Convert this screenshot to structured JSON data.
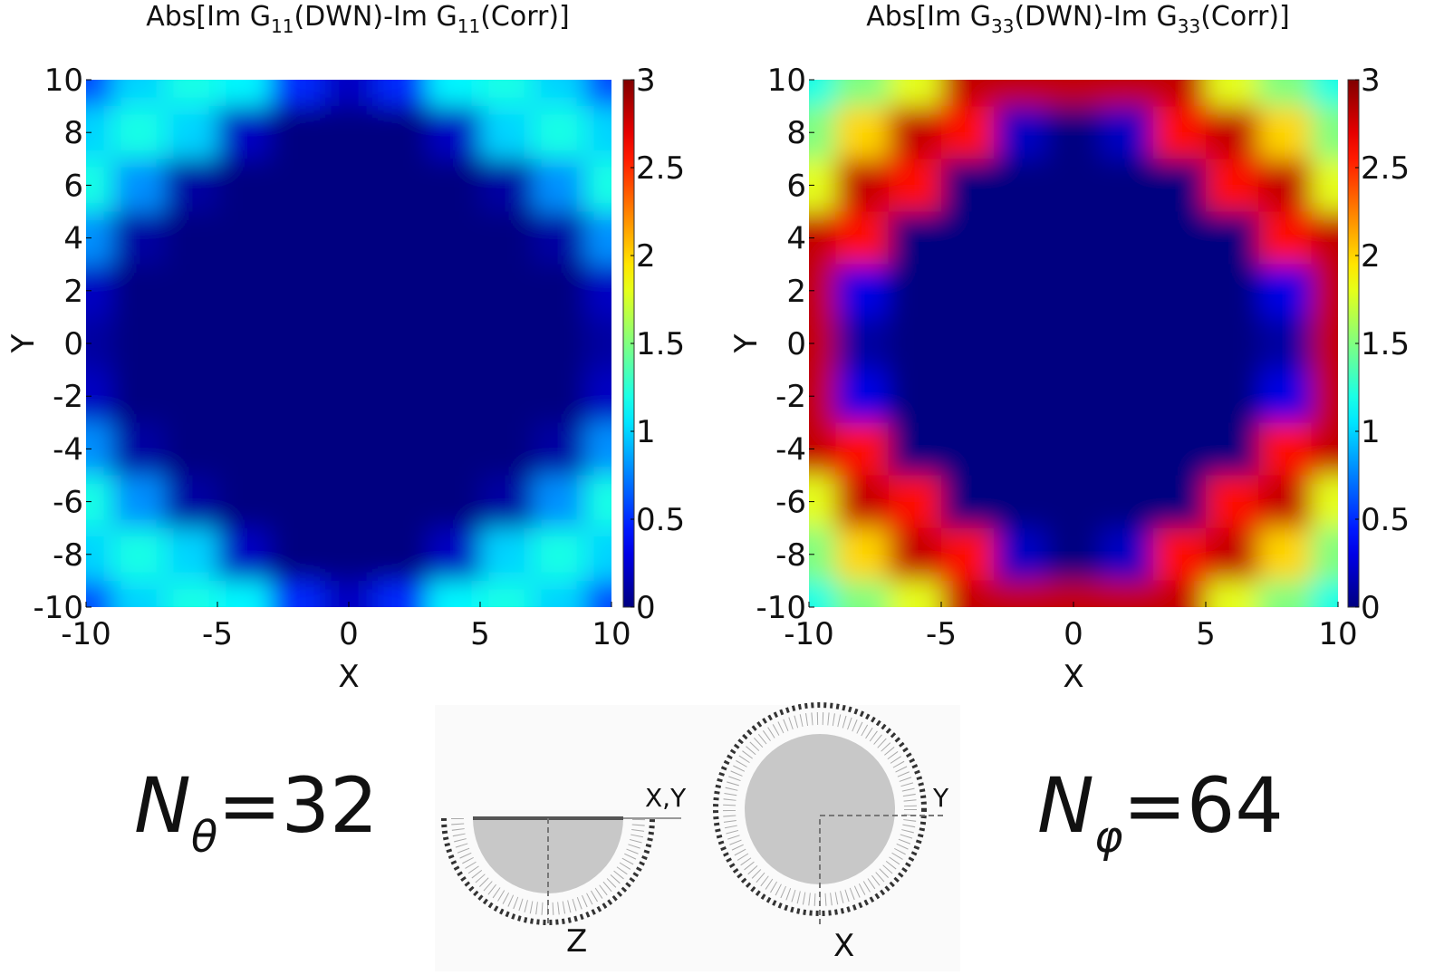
{
  "chart_data": [
    {
      "type": "heatmap",
      "title": [
        "Abs[Im G",
        "11",
        "(DWN)-Im G",
        "11",
        "(Corr)]"
      ],
      "xlabel": "X",
      "ylabel": "Y",
      "x": [
        -10,
        -8,
        -6,
        -4,
        -2,
        0,
        2,
        4,
        6,
        8,
        10
      ],
      "y": [
        10,
        8,
        6,
        4,
        2,
        0,
        -2,
        -4,
        -6,
        -8,
        -10
      ],
      "z": [
        [
          0.6,
          1.0,
          1.2,
          1.1,
          0.5,
          0.2,
          0.5,
          1.1,
          1.2,
          1.0,
          0.6
        ],
        [
          1.0,
          1.2,
          1.0,
          0.2,
          0,
          0,
          0,
          0.2,
          1.0,
          1.2,
          1.0
        ],
        [
          1.2,
          0.8,
          0.1,
          0,
          0,
          0,
          0,
          0,
          0.1,
          0.8,
          1.2
        ],
        [
          0.8,
          0.1,
          0,
          0,
          0,
          0,
          0,
          0,
          0,
          0.1,
          0.8
        ],
        [
          0.2,
          0,
          0,
          0,
          0,
          0,
          0,
          0,
          0,
          0,
          0.2
        ],
        [
          0.1,
          0,
          0,
          0,
          0,
          0,
          0,
          0,
          0,
          0,
          0.1
        ],
        [
          0.2,
          0,
          0,
          0,
          0,
          0,
          0,
          0,
          0,
          0,
          0.2
        ],
        [
          0.8,
          0.1,
          0,
          0,
          0,
          0,
          0,
          0,
          0,
          0.1,
          0.8
        ],
        [
          1.2,
          0.8,
          0.1,
          0,
          0,
          0,
          0,
          0,
          0.1,
          0.8,
          1.2
        ],
        [
          1.0,
          1.2,
          1.0,
          0.2,
          0,
          0,
          0,
          0.2,
          1.0,
          1.2,
          1.0
        ],
        [
          0.6,
          1.0,
          1.2,
          1.1,
          0.5,
          0.2,
          0.5,
          1.1,
          1.2,
          1.0,
          0.6
        ]
      ],
      "xlim": [
        -10,
        10
      ],
      "ylim": [
        -10,
        10
      ],
      "xticks": [
        -10,
        -5,
        0,
        5,
        10
      ],
      "yticks": [
        -10,
        -8,
        -6,
        -4,
        -2,
        0,
        2,
        4,
        6,
        8,
        10
      ],
      "clim": [
        0,
        3
      ],
      "cticks": [
        0,
        0.5,
        1,
        1.5,
        2,
        2.5,
        3
      ],
      "colormap": "jet"
    },
    {
      "type": "heatmap",
      "title": [
        "Abs[Im G",
        "33",
        "(DWN)-Im G",
        "33",
        "(Corr)]"
      ],
      "xlabel": "X",
      "ylabel": "Y",
      "x": [
        -10,
        -8,
        -6,
        -4,
        -2,
        0,
        2,
        4,
        6,
        8,
        10
      ],
      "y": [
        10,
        8,
        6,
        4,
        2,
        0,
        -2,
        -4,
        -6,
        -8,
        -10
      ],
      "z": [
        [
          1.2,
          1.5,
          1.8,
          2.8,
          2.8,
          2.8,
          2.8,
          2.8,
          1.8,
          1.5,
          1.2
        ],
        [
          1.5,
          2.0,
          2.8,
          2.6,
          0.2,
          0,
          0.2,
          2.6,
          2.8,
          2.0,
          1.5
        ],
        [
          1.8,
          2.8,
          2.6,
          0,
          0,
          0,
          0,
          0,
          2.6,
          2.8,
          1.8
        ],
        [
          2.8,
          2.6,
          0,
          0,
          0,
          0,
          0,
          0,
          0,
          2.6,
          2.8
        ],
        [
          2.8,
          0.3,
          0,
          0,
          0,
          0,
          0,
          0,
          0,
          0.3,
          2.8
        ],
        [
          2.8,
          0.1,
          0,
          0,
          0,
          0,
          0,
          0,
          0,
          0.1,
          2.8
        ],
        [
          2.8,
          0.3,
          0,
          0,
          0,
          0,
          0,
          0,
          0,
          0.3,
          2.8
        ],
        [
          2.8,
          2.6,
          0,
          0,
          0,
          0,
          0,
          0,
          0,
          2.6,
          2.8
        ],
        [
          1.8,
          2.8,
          2.6,
          0,
          0,
          0,
          0,
          0,
          2.6,
          2.8,
          1.8
        ],
        [
          1.5,
          2.0,
          2.8,
          2.6,
          0.2,
          0,
          0.2,
          2.6,
          2.8,
          2.0,
          1.5
        ],
        [
          1.2,
          1.5,
          1.8,
          2.8,
          2.8,
          2.8,
          2.8,
          2.8,
          1.8,
          1.5,
          1.2
        ]
      ],
      "xlim": [
        -10,
        10
      ],
      "ylim": [
        -10,
        10
      ],
      "xticks": [
        -10,
        -5,
        0,
        5,
        10
      ],
      "yticks": [
        -10,
        -8,
        -6,
        -4,
        -2,
        0,
        2,
        4,
        6,
        8,
        10
      ],
      "clim": [
        0,
        3
      ],
      "cticks": [
        0,
        0.5,
        1,
        1.5,
        2,
        2.5,
        3
      ],
      "colormap": "jet"
    }
  ],
  "figure": {
    "left_formula": {
      "symbol": "N",
      "subscript": "θ",
      "rest": "=32"
    },
    "right_formula": {
      "symbol": "N",
      "subscript": "φ",
      "rest": "=64"
    },
    "diagram_labels": [
      "X,Y",
      "Z",
      "Y",
      "X"
    ]
  }
}
